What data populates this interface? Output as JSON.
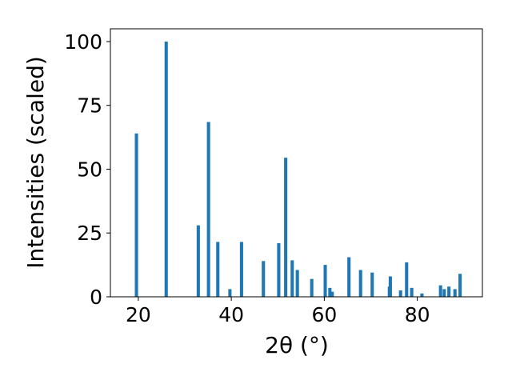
{
  "chart_data": {
    "type": "bar",
    "xlabel": "2θ (°)",
    "ylabel": "Intensities (scaled)",
    "xlim": [
      14,
      94
    ],
    "ylim": [
      0,
      105
    ],
    "x_ticks": [
      20,
      40,
      60,
      80
    ],
    "y_ticks": [
      0,
      25,
      50,
      75,
      100
    ],
    "bar_width_deg": 0.7,
    "bar_color": "#1f77b4",
    "grid": false,
    "peaks": [
      {
        "x": 19.6,
        "y": 64
      },
      {
        "x": 26.0,
        "y": 100
      },
      {
        "x": 32.9,
        "y": 28
      },
      {
        "x": 35.1,
        "y": 68.5
      },
      {
        "x": 37.1,
        "y": 21.5
      },
      {
        "x": 39.7,
        "y": 3
      },
      {
        "x": 42.2,
        "y": 21.5
      },
      {
        "x": 46.9,
        "y": 14
      },
      {
        "x": 50.2,
        "y": 21
      },
      {
        "x": 51.7,
        "y": 54.5
      },
      {
        "x": 53.1,
        "y": 14.3
      },
      {
        "x": 54.2,
        "y": 10.5
      },
      {
        "x": 57.3,
        "y": 7
      },
      {
        "x": 60.2,
        "y": 12.5
      },
      {
        "x": 61.2,
        "y": 3.5
      },
      {
        "x": 61.7,
        "y": 2
      },
      {
        "x": 65.3,
        "y": 15.5
      },
      {
        "x": 67.8,
        "y": 10.5
      },
      {
        "x": 70.3,
        "y": 9.5
      },
      {
        "x": 74.0,
        "y": 4
      },
      {
        "x": 74.2,
        "y": 8
      },
      {
        "x": 76.4,
        "y": 2.5
      },
      {
        "x": 77.7,
        "y": 13.5
      },
      {
        "x": 78.8,
        "y": 3.5
      },
      {
        "x": 81.0,
        "y": 1.3
      },
      {
        "x": 85.0,
        "y": 4.5
      },
      {
        "x": 85.8,
        "y": 3
      },
      {
        "x": 86.8,
        "y": 4
      },
      {
        "x": 88.1,
        "y": 3
      },
      {
        "x": 89.2,
        "y": 9
      }
    ]
  }
}
